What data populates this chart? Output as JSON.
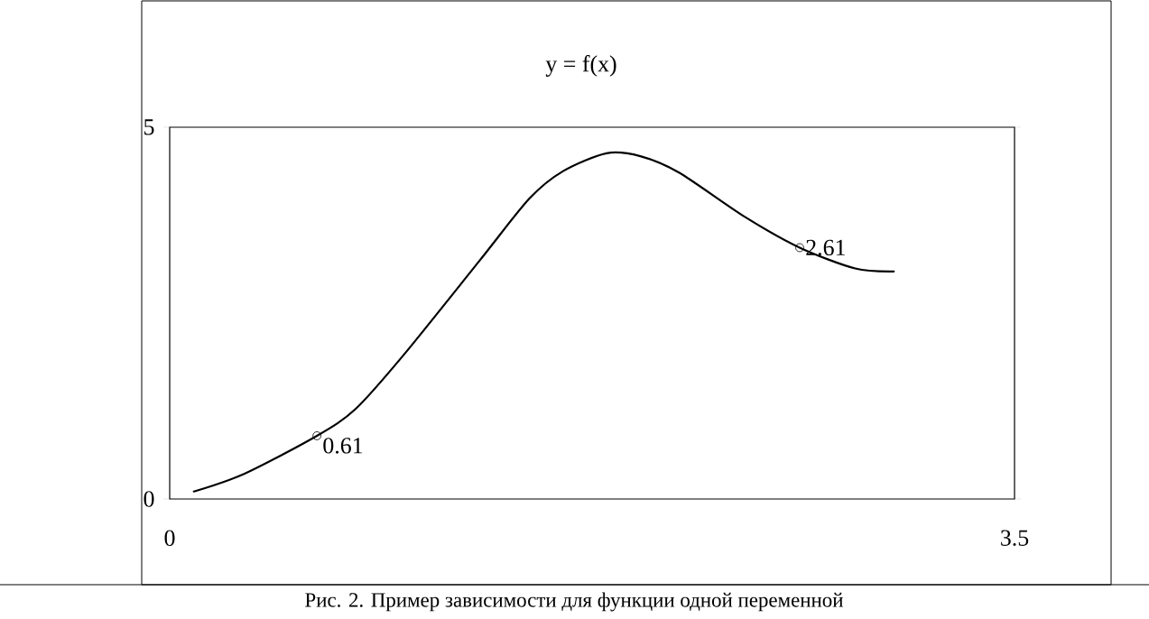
{
  "chart_data": {
    "type": "line",
    "title": "y = f(x)",
    "annotations": [
      {
        "text": "0.61",
        "x": 0.61,
        "y": 0.85
      },
      {
        "text": "2.61",
        "x": 2.61,
        "y": 3.38
      },
      "Рис. 2. Пример зависимости для функции одной переменной"
    ],
    "series": [
      {
        "color": "#000000",
        "marker": "none",
        "x": [
          0.1,
          0.31,
          0.61,
          0.77,
          0.97,
          1.28,
          1.49,
          1.63,
          1.81,
          1.95,
          2.11,
          2.38,
          2.61,
          2.84,
          3.0
        ],
        "values": [
          0.1,
          0.34,
          0.85,
          1.21,
          1.94,
          3.19,
          4.04,
          4.41,
          4.65,
          4.61,
          4.39,
          3.8,
          3.38,
          3.1,
          3.06
        ]
      },
      {
        "type": "scatter",
        "color": "#000000",
        "marker": "circle",
        "x": [
          0.61,
          2.61
        ],
        "values": [
          0.85,
          3.38
        ]
      }
    ],
    "xlim": [
      0,
      3.5
    ],
    "ylim": [
      0,
      5
    ],
    "xticks": [
      0,
      3.5
    ],
    "yticks": [
      0,
      5
    ],
    "grid": false
  }
}
